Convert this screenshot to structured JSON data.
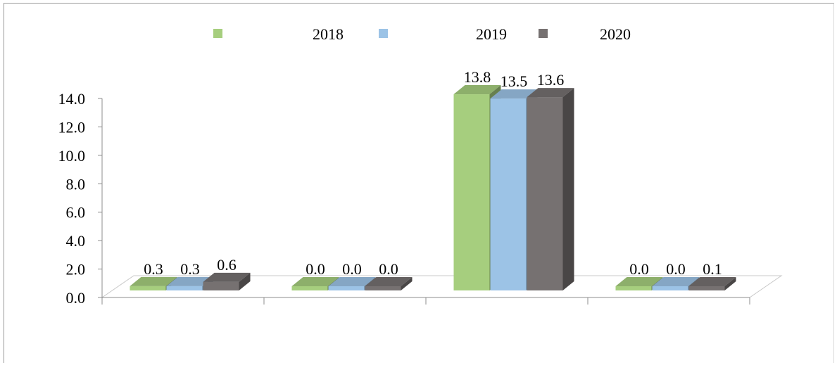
{
  "chart_data": {
    "type": "bar",
    "title": "",
    "xlabel": "",
    "ylabel": "",
    "categories": [
      "",
      "",
      "",
      ""
    ],
    "series": [
      {
        "name": "2018",
        "color": "#a6ce7e",
        "values": [
          0.3,
          0.0,
          13.8,
          0.0
        ]
      },
      {
        "name": "2019",
        "color": "#9cc3e6",
        "values": [
          0.3,
          0.0,
          13.5,
          0.0
        ]
      },
      {
        "name": "2020",
        "color": "#767171",
        "values": [
          0.6,
          0.0,
          13.6,
          0.1
        ]
      }
    ],
    "data_labels": [
      [
        "0.3",
        "0.3",
        "0.6"
      ],
      [
        "0.0",
        "0.0",
        "0.0"
      ],
      [
        "13.8",
        "13.5",
        "13.6"
      ],
      [
        "0.0",
        "0.0",
        "0.1"
      ]
    ],
    "ylim": [
      0,
      14
    ],
    "yticks": [
      "0.0",
      "2.0",
      "4.0",
      "6.0",
      "8.0",
      "10.0",
      "12.0",
      "14.0"
    ],
    "legend_position": "top",
    "grid": false,
    "style": "3d-clustered-column"
  }
}
